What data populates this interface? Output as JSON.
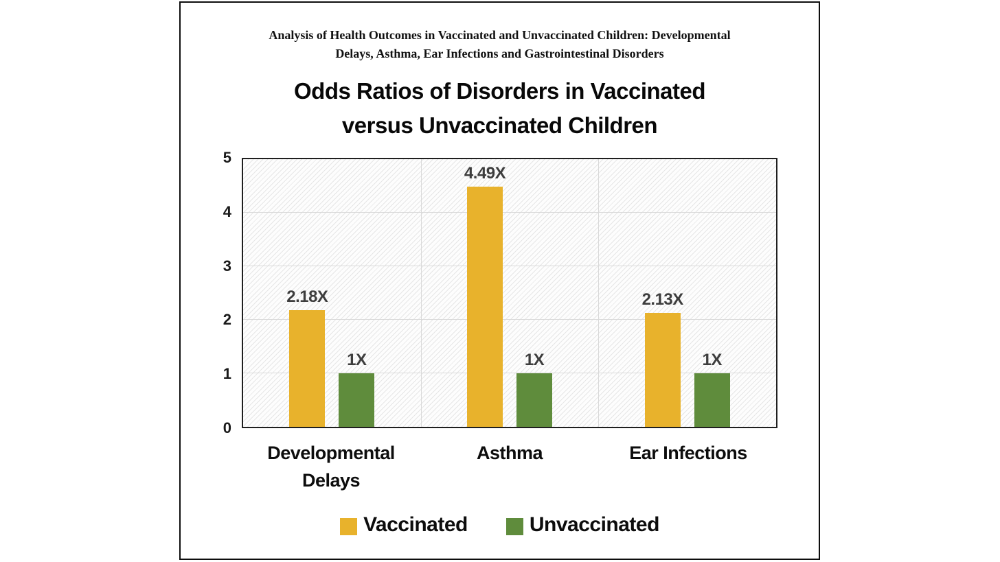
{
  "card": {
    "subtitle_lines": [
      "Analysis of Health Outcomes in Vaccinated and Unvaccinated Children: Developmental",
      "Delays, Asthma, Ear Infections and Gastrointestinal Disorders"
    ]
  },
  "chart_data": {
    "type": "bar",
    "title": "Odds Ratios of Disorders in Vaccinated versus Unvaccinated Children",
    "title_lines": [
      "Odds Ratios of Disorders in Vaccinated",
      "versus Unvaccinated Children"
    ],
    "categories": [
      "Developmental Delays",
      "Asthma",
      "Ear Infections"
    ],
    "series": [
      {
        "name": "Vaccinated",
        "color": "#E8B22C",
        "values": [
          2.18,
          4.49,
          2.13
        ],
        "labels": [
          "2.18X",
          "4.49X",
          "2.13X"
        ]
      },
      {
        "name": "Unvaccinated",
        "color": "#5F8C3C",
        "values": [
          1,
          1,
          1
        ],
        "labels": [
          "1X",
          "1X",
          "1X"
        ]
      }
    ],
    "xlabel": "",
    "ylabel": "",
    "ylim": [
      0,
      5
    ],
    "yticks": [
      0,
      1,
      2,
      3,
      4,
      5
    ],
    "grid": true,
    "legend_position": "bottom",
    "plot_background": "hatched-diagonal",
    "grid_color": "#D9D9D9",
    "value_label_color": "#3D3D3D"
  }
}
